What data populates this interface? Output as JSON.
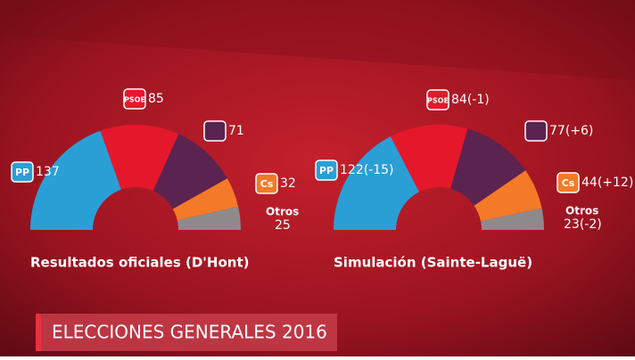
{
  "chart_data": [
    {
      "type": "semicircle",
      "title": "Resultados oficiales (D'Hont)",
      "categories": [
        "PP",
        "PSOE",
        null,
        "Cs",
        "Otros"
      ],
      "values": [
        137,
        85,
        71,
        32,
        25
      ],
      "colors": [
        "#2a9fd6",
        "#e5182b",
        "#5b2350",
        "#f47a28",
        "#8e8a8c"
      ]
    },
    {
      "type": "semicircle",
      "title": "Simulación (Sainte-Laguë)",
      "categories": [
        "PP",
        "PSOE",
        null,
        "Cs",
        "Otros"
      ],
      "values": [
        122,
        84,
        77,
        44,
        23
      ],
      "value_labels": [
        "122(-15)",
        "84(-1)",
        "77(+6)",
        "44(+12)",
        "23(-2)"
      ],
      "colors": [
        "#2a9fd6",
        "#e5182b",
        "#5b2350",
        "#f47a28",
        "#8e8a8c"
      ]
    }
  ],
  "banner": "ELECCIONES GENERALES 2016"
}
